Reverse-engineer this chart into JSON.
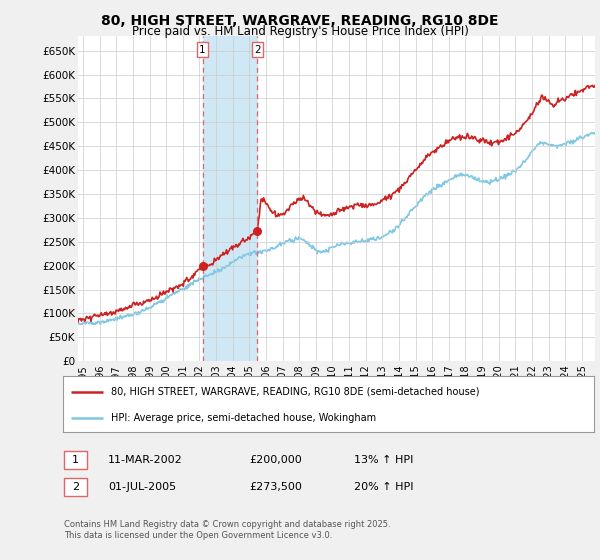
{
  "title": "80, HIGH STREET, WARGRAVE, READING, RG10 8DE",
  "subtitle": "Price paid vs. HM Land Registry's House Price Index (HPI)",
  "legend_line1": "80, HIGH STREET, WARGRAVE, READING, RG10 8DE (semi-detached house)",
  "legend_line2": "HPI: Average price, semi-detached house, Wokingham",
  "footnote": "Contains HM Land Registry data © Crown copyright and database right 2025.\nThis data is licensed under the Open Government Licence v3.0.",
  "sale1_date": "11-MAR-2002",
  "sale1_price": "£200,000",
  "sale1_hpi": "13% ↑ HPI",
  "sale2_date": "01-JUL-2005",
  "sale2_price": "£273,500",
  "sale2_hpi": "20% ↑ HPI",
  "marker1_x": 2002.19,
  "marker1_y": 200000,
  "marker2_x": 2005.49,
  "marker2_y": 273500,
  "vline1_x": 2002.19,
  "vline2_x": 2005.49,
  "ylim": [
    0,
    680000
  ],
  "xlim_start": 1994.7,
  "xlim_end": 2025.8,
  "yticks": [
    0,
    50000,
    100000,
    150000,
    200000,
    250000,
    300000,
    350000,
    400000,
    450000,
    500000,
    550000,
    600000,
    650000
  ],
  "ytick_labels": [
    "£0",
    "£50K",
    "£100K",
    "£150K",
    "£200K",
    "£250K",
    "£300K",
    "£350K",
    "£400K",
    "£450K",
    "£500K",
    "£550K",
    "£600K",
    "£650K"
  ],
  "xticks": [
    1995,
    1996,
    1997,
    1998,
    1999,
    2000,
    2001,
    2002,
    2003,
    2004,
    2005,
    2006,
    2007,
    2008,
    2009,
    2010,
    2011,
    2012,
    2013,
    2014,
    2015,
    2016,
    2017,
    2018,
    2019,
    2020,
    2021,
    2022,
    2023,
    2024,
    2025
  ],
  "hpi_color": "#7ec8e3",
  "price_color": "#cc2222",
  "shade_color": "#d0e8f5",
  "background_color": "#f0f0f0",
  "plot_bg_color": "#ffffff",
  "grid_color": "#cccccc",
  "vline_color": "#dd6666"
}
